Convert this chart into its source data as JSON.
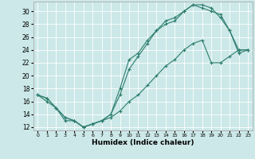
{
  "xlabel": "Humidex (Indice chaleur)",
  "bg_color": "#cce8e8",
  "line_color": "#2d7d6e",
  "xlim": [
    -0.5,
    23.5
  ],
  "ylim": [
    11.5,
    31.5
  ],
  "xticks": [
    0,
    1,
    2,
    3,
    4,
    5,
    6,
    7,
    8,
    9,
    10,
    11,
    12,
    13,
    14,
    15,
    16,
    17,
    18,
    19,
    20,
    21,
    22,
    23
  ],
  "yticks": [
    12,
    14,
    16,
    18,
    20,
    22,
    24,
    26,
    28,
    30
  ],
  "line1_x": [
    0,
    1,
    2,
    3,
    4,
    5,
    6,
    7,
    8,
    9,
    10,
    11,
    12,
    13,
    14,
    15,
    16,
    17,
    18,
    19,
    20,
    21,
    22,
    23
  ],
  "line1_y": [
    17,
    16,
    15,
    13,
    13,
    12,
    12.5,
    13,
    14,
    18,
    22.5,
    23.5,
    25.5,
    27,
    28,
    28.5,
    30,
    31,
    31,
    30.5,
    29,
    27,
    23.5,
    24
  ],
  "line2_x": [
    0,
    1,
    2,
    3,
    4,
    5,
    6,
    7,
    8,
    9,
    10,
    11,
    12,
    13,
    14,
    15,
    16,
    17,
    18,
    19,
    20,
    21,
    22,
    23
  ],
  "line2_y": [
    17,
    16.5,
    15,
    13.5,
    13,
    12,
    12.5,
    13,
    13.5,
    14.5,
    16,
    17,
    18.5,
    20,
    21.5,
    22.5,
    24,
    25,
    25.5,
    22,
    22,
    23,
    24,
    24
  ],
  "line3_x": [
    0,
    1,
    2,
    3,
    4,
    5,
    6,
    7,
    8,
    9,
    10,
    11,
    12,
    13,
    14,
    15,
    16,
    17,
    18,
    19,
    20,
    21,
    22,
    23
  ],
  "line3_y": [
    17,
    16.5,
    15,
    13.5,
    13,
    12,
    12.5,
    13,
    14,
    17,
    21,
    23,
    25,
    27,
    28.5,
    29,
    30,
    31,
    30.5,
    30,
    29.5,
    27,
    24,
    24
  ]
}
